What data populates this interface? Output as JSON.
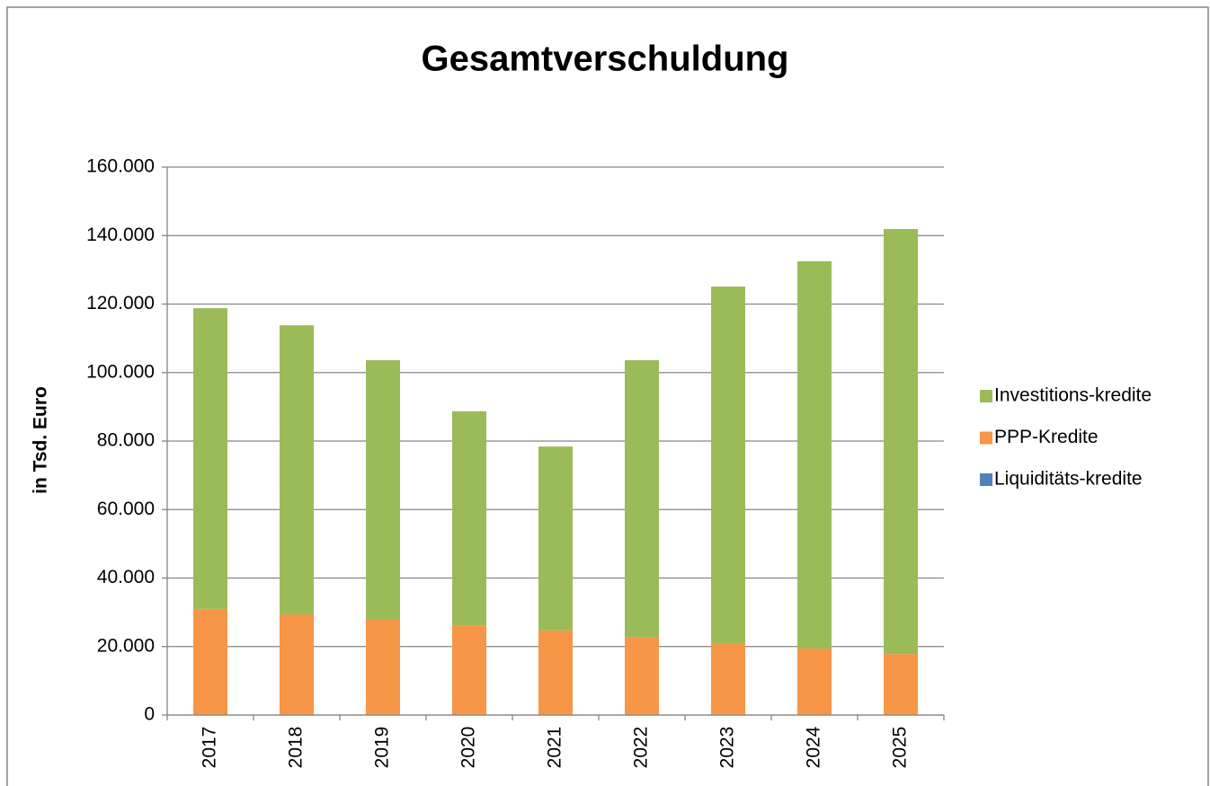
{
  "chart_data": {
    "type": "stacked_bar",
    "title": "Gesamtverschuldung",
    "y_label": "in Tsd. Euro",
    "categories": [
      "2017",
      "2018",
      "2019",
      "2020",
      "2021",
      "2022",
      "2023",
      "2024",
      "2025"
    ],
    "series": [
      {
        "name": "Liquiditäts-kredite",
        "color": "#4f81bd",
        "values": [
          0,
          0,
          0,
          0,
          0,
          0,
          0,
          0,
          0
        ]
      },
      {
        "name": "PPP-Kredite",
        "color": "#f79646",
        "values": [
          31000,
          29400,
          27800,
          26200,
          24700,
          22800,
          21000,
          19400,
          17800
        ]
      },
      {
        "name": "Investitions-kredite",
        "color": "#9bbb59",
        "values": [
          87800,
          84400,
          75800,
          62500,
          53700,
          80800,
          104100,
          113100,
          124100
        ]
      }
    ],
    "ylim": [
      0,
      160000
    ],
    "yticks": [
      0,
      {
        "value": 20000,
        "label": "20.000"
      },
      {
        "value": 40000,
        "label": "40.000"
      },
      {
        "value": 60000,
        "label": "60.000"
      },
      {
        "value": 80000,
        "label": "80.000"
      },
      {
        "value": 100000,
        "label": "100.000"
      },
      {
        "value": 120000,
        "label": "120.000"
      },
      {
        "value": 140000,
        "label": "140.000"
      },
      {
        "value": 160000,
        "label": "160.000"
      }
    ],
    "grid": true,
    "legend": "right"
  }
}
